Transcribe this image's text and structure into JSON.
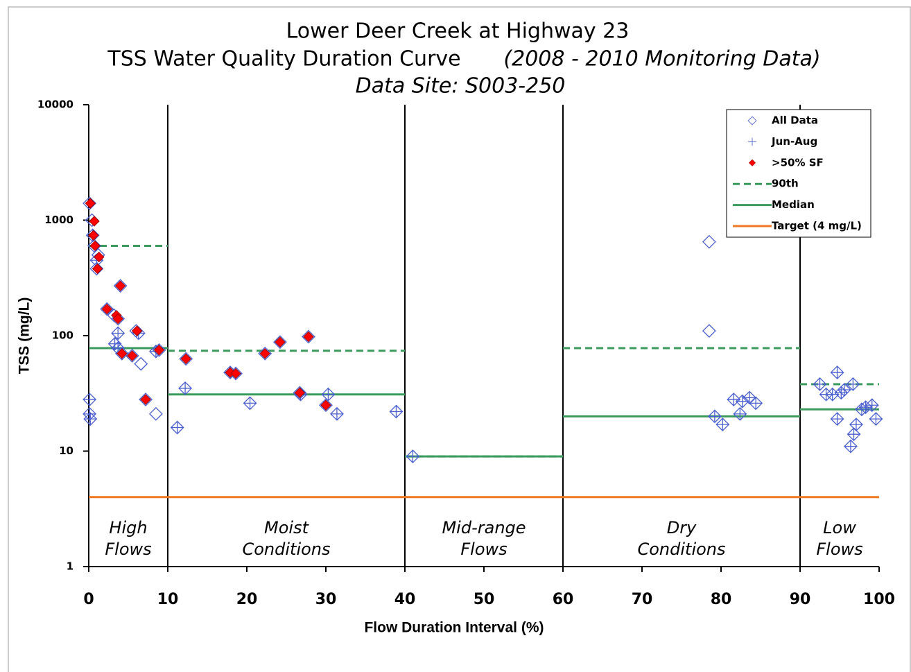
{
  "chart_data": {
    "type": "scatter",
    "title": "Lower Deer Creek at Highway 23",
    "subtitle": "TSS Water Quality Duration Curve",
    "subtitle_note": "(2008 - 2010 Monitoring Data)",
    "site": "Data Site:  S003-250",
    "x_label": "Flow Duration Interval (%)",
    "y_label": "TSS (mg/L)",
    "xlim": [
      0,
      100
    ],
    "xticks": [
      0,
      10,
      20,
      30,
      40,
      50,
      60,
      70,
      80,
      90,
      100
    ],
    "ylim": [
      1,
      10000
    ],
    "yticks": [
      1,
      10,
      100,
      1000,
      10000
    ],
    "log_y": true,
    "legend": "upper right",
    "regions": [
      {
        "label": [
          "High",
          "Flows"
        ],
        "range": [
          0,
          10
        ]
      },
      {
        "label": [
          "Moist",
          "Conditions"
        ],
        "range": [
          10,
          40
        ]
      },
      {
        "label": [
          "Mid-range",
          "Flows"
        ],
        "range": [
          40,
          60
        ]
      },
      {
        "label": [
          "Dry",
          "Conditions"
        ],
        "range": [
          60,
          90
        ]
      },
      {
        "label": [
          "Low",
          "Flows"
        ],
        "range": [
          90,
          100
        ]
      }
    ],
    "series": [
      {
        "name": "All Data",
        "kind": "diamond",
        "color": "#4a5fd0",
        "x": [
          0.1,
          0.4,
          0.5,
          0.7,
          1.2,
          1.0,
          1.0,
          0.1,
          0.1,
          0.2,
          2.3,
          3.2,
          3.7,
          3.3,
          3.7,
          3.7,
          4.0,
          4.2,
          5.5,
          6.0,
          6.3,
          6.6,
          7.2,
          8.5,
          8.9,
          8.5,
          11.2,
          12.3,
          12.2,
          17.9,
          18.6,
          20.4,
          22.3,
          24.2,
          26.7,
          26.8,
          27.8,
          30.0,
          30.3,
          31.4,
          38.9,
          41.0,
          78.5,
          78.5,
          79.2,
          80.2,
          81.6,
          82.4,
          82.7,
          83.6,
          84.4,
          92.5,
          93.3,
          94.1,
          94.7,
          94.7,
          95.2,
          95.6,
          96.7,
          96.4,
          96.8,
          97.1,
          97.8,
          98.3,
          99.1,
          99.6
        ],
        "values": [
          1400,
          1000,
          740,
          600,
          500,
          450,
          380,
          28,
          21,
          19,
          170,
          150,
          140,
          85,
          105,
          78,
          270,
          70,
          67,
          110,
          105,
          57,
          28,
          21,
          75,
          73,
          16,
          63,
          35,
          48,
          47,
          26,
          70,
          88,
          32,
          31,
          98,
          25,
          31,
          21,
          22,
          9,
          650,
          110,
          20,
          17,
          28,
          21,
          27,
          29,
          26,
          38,
          31,
          31,
          48,
          19,
          32,
          34,
          38,
          11,
          14,
          17,
          23,
          24,
          25,
          19
        ]
      },
      {
        "name": "Jun-Aug",
        "kind": "plus",
        "color": "#4a5fd0",
        "x": [
          0.1,
          0.1,
          0.2,
          0.5,
          1.0,
          3.3,
          3.7,
          3.7,
          4.2,
          6.3,
          8.5,
          11.2,
          12.2,
          17.9,
          18.6,
          20.4,
          26.8,
          30.3,
          31.4,
          38.9,
          41.0,
          79.2,
          80.2,
          81.6,
          82.4,
          82.7,
          83.6,
          84.4,
          92.5,
          93.3,
          94.1,
          94.7,
          94.7,
          95.2,
          95.6,
          96.7,
          96.4,
          96.8,
          97.1,
          97.8,
          98.3,
          99.1,
          99.6
        ],
        "values": [
          28,
          21,
          19,
          740,
          450,
          85,
          105,
          78,
          70,
          105,
          73,
          16,
          35,
          48,
          47,
          26,
          31,
          31,
          21,
          22,
          9,
          20,
          17,
          28,
          21,
          27,
          29,
          26,
          38,
          31,
          31,
          48,
          19,
          32,
          34,
          38,
          11,
          14,
          17,
          23,
          24,
          25,
          19
        ]
      },
      {
        "name": ">50% SF",
        "kind": "filled-diamond",
        "color": "#ff0000",
        "x": [
          0.2,
          0.7,
          0.6,
          0.8,
          1.3,
          1.1,
          2.3,
          3.5,
          3.7,
          4.0,
          4.2,
          5.5,
          6.1,
          7.2,
          8.9,
          12.3,
          17.9,
          18.6,
          22.3,
          24.2,
          26.7,
          27.8,
          30.0
        ],
        "values": [
          1400,
          980,
          740,
          600,
          480,
          380,
          170,
          150,
          140,
          270,
          70,
          67,
          110,
          28,
          75,
          63,
          48,
          47,
          70,
          88,
          32,
          98,
          25
        ]
      },
      {
        "name": "90th",
        "kind": "dashed",
        "color": "#3a9a5c",
        "values": [
          600,
          74,
          9,
          78,
          38
        ]
      },
      {
        "name": "Median",
        "kind": "line",
        "color": "#3a9a5c",
        "values": [
          78,
          31,
          9,
          20,
          23
        ]
      },
      {
        "name": "Target (4 mg/L)",
        "kind": "line",
        "color": "#f07820",
        "x": [
          0,
          100
        ],
        "values": [
          4,
          4
        ]
      }
    ]
  }
}
